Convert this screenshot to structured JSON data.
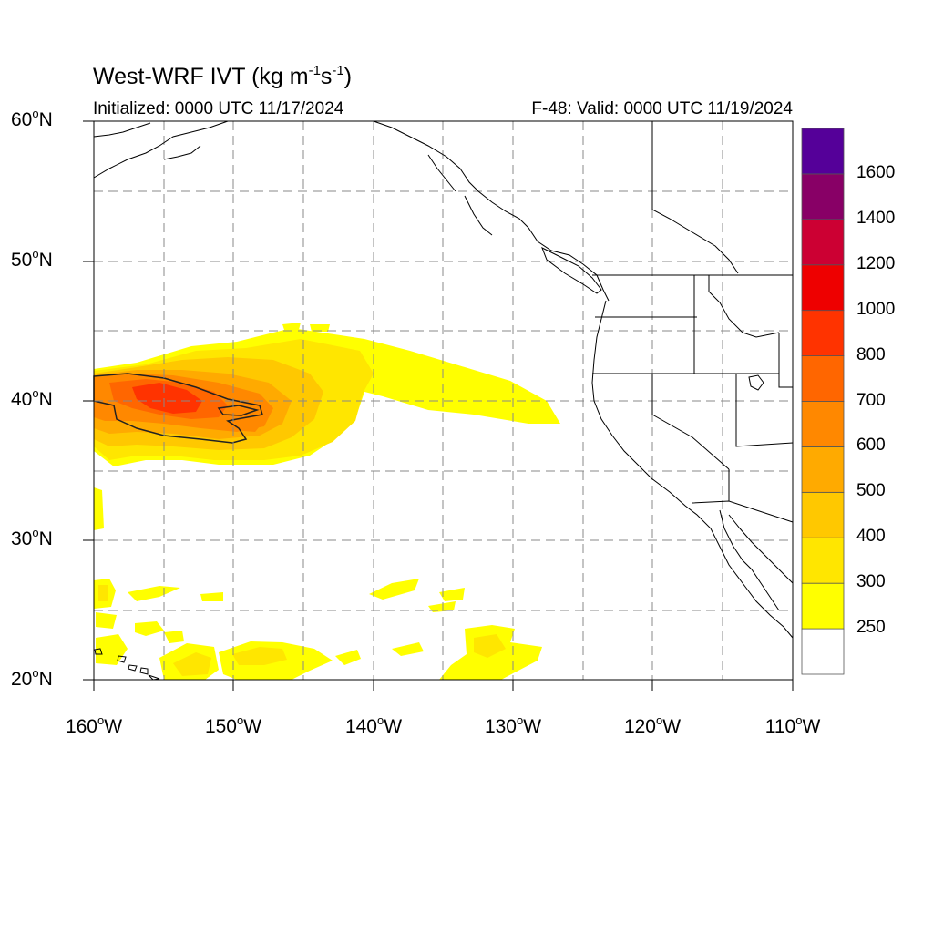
{
  "title": {
    "prefix": "West-WRF IVT (kg m",
    "exp1": "-1",
    "mid": "s",
    "exp2": "-1",
    "suffix": ")"
  },
  "initialized": "Initialized: 0000 UTC 11/17/2024",
  "valid": "F-48: Valid: 0000 UTC 11/19/2024",
  "lat_labels": [
    {
      "num": "60",
      "hem": "N"
    },
    {
      "num": "50",
      "hem": "N"
    },
    {
      "num": "40",
      "hem": "N"
    },
    {
      "num": "30",
      "hem": "N"
    },
    {
      "num": "20",
      "hem": "N"
    }
  ],
  "lon_labels": [
    {
      "num": "160",
      "hem": "W"
    },
    {
      "num": "150",
      "hem": "W"
    },
    {
      "num": "140",
      "hem": "W"
    },
    {
      "num": "130",
      "hem": "W"
    },
    {
      "num": "120",
      "hem": "W"
    },
    {
      "num": "110",
      "hem": "W"
    }
  ],
  "colorbar": {
    "levels": [
      "250",
      "300",
      "400",
      "500",
      "600",
      "700",
      "800",
      "1000",
      "1200",
      "1400",
      "1600"
    ],
    "colors": [
      "#ffffff",
      "#ffff00",
      "#ffe600",
      "#ffc800",
      "#ffaa00",
      "#ff8800",
      "#ff6600",
      "#ff3300",
      "#ee0000",
      "#cc0033",
      "#880066",
      "#550099"
    ]
  },
  "map_extent": {
    "lon_min": -160,
    "lon_max": -110,
    "lat_min": 20,
    "lat_max": 60
  }
}
